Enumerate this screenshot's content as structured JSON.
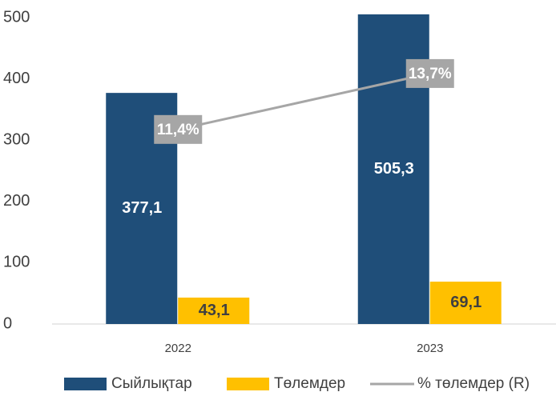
{
  "chart_data": {
    "type": "bar",
    "categories": [
      "2022",
      "2023"
    ],
    "series": [
      {
        "name": "Сыйлықтар",
        "color": "#1f4e79",
        "values": [
          377.1,
          505.3
        ],
        "value_labels": [
          "377,1",
          "505,3"
        ]
      },
      {
        "name": "Төлемдер",
        "color": "#ffc000",
        "values": [
          43.1,
          69.1
        ],
        "value_labels": [
          "43,1",
          "69,1"
        ]
      },
      {
        "name": "% төлемдер (R)",
        "type": "line",
        "axis": "y2",
        "color": "#a6a6a6",
        "values": [
          11.4,
          13.7
        ],
        "value_labels": [
          "11,4%",
          "13,7%"
        ]
      }
    ],
    "ylim": [
      0,
      500
    ],
    "yticks": [
      0,
      100,
      200,
      300,
      400,
      500
    ],
    "y2lim": [
      3.4,
      16
    ],
    "legend": "bottom"
  }
}
